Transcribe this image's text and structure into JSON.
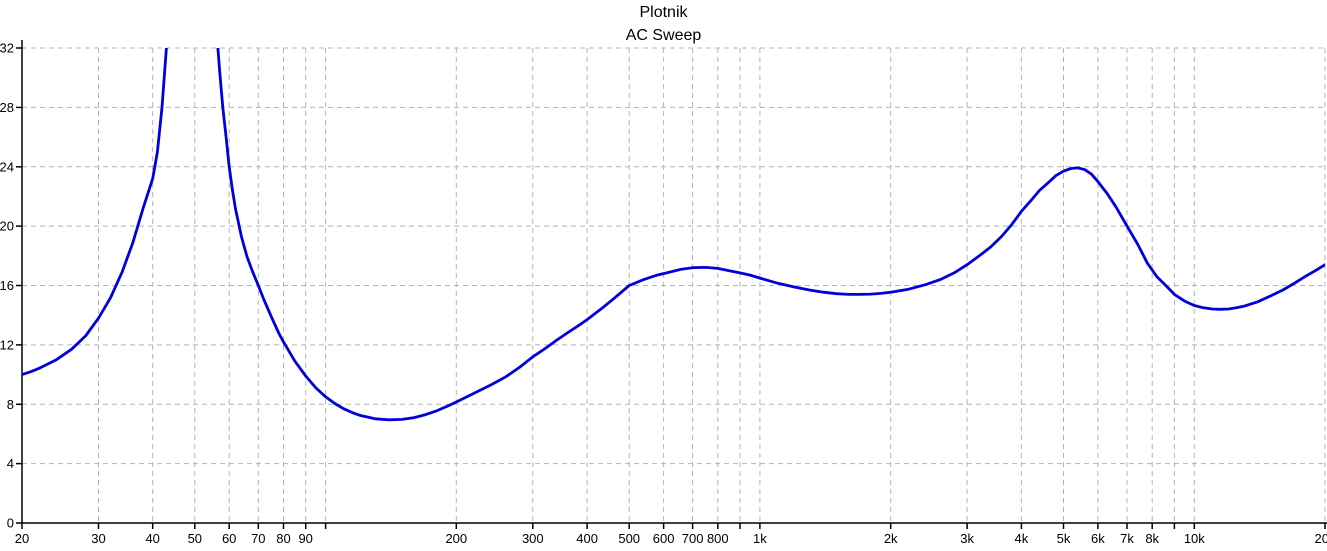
{
  "window_title": "Plotnik",
  "chart_data": {
    "type": "line",
    "title": "Plotnik",
    "subtitle": "AC Sweep",
    "x_scale": "log",
    "x_range": [
      20,
      20000
    ],
    "y_range": [
      0,
      32
    ],
    "grid": true,
    "legend": "none",
    "colors": {
      "trace": "#0000dd",
      "grid": "#b4b4b4",
      "axis": "#000000",
      "background": "#ffffff",
      "text": "#000000"
    },
    "y_ticks": [
      {
        "v": 0,
        "label": "0"
      },
      {
        "v": 4,
        "label": "4"
      },
      {
        "v": 8,
        "label": "8"
      },
      {
        "v": 12,
        "label": "12"
      },
      {
        "v": 16,
        "label": "16"
      },
      {
        "v": 20,
        "label": "20"
      },
      {
        "v": 24,
        "label": "24"
      },
      {
        "v": 28,
        "label": "28"
      },
      {
        "v": 32,
        "label": "32"
      }
    ],
    "x_ticks": [
      {
        "f": 20,
        "label": "20"
      },
      {
        "f": 30,
        "label": "30"
      },
      {
        "f": 40,
        "label": "40"
      },
      {
        "f": 50,
        "label": "50"
      },
      {
        "f": 60,
        "label": "60"
      },
      {
        "f": 70,
        "label": "70"
      },
      {
        "f": 80,
        "label": "80"
      },
      {
        "f": 90,
        "label": "90"
      },
      {
        "f": 100,
        "label": ""
      },
      {
        "f": 200,
        "label": "200"
      },
      {
        "f": 300,
        "label": "300"
      },
      {
        "f": 400,
        "label": "400"
      },
      {
        "f": 500,
        "label": "500"
      },
      {
        "f": 600,
        "label": "600"
      },
      {
        "f": 700,
        "label": "700"
      },
      {
        "f": 800,
        "label": "800"
      },
      {
        "f": 900,
        "label": ""
      },
      {
        "f": 1000,
        "label": "1k"
      },
      {
        "f": 2000,
        "label": "2k"
      },
      {
        "f": 3000,
        "label": "3k"
      },
      {
        "f": 4000,
        "label": "4k"
      },
      {
        "f": 5000,
        "label": "5k"
      },
      {
        "f": 6000,
        "label": "6k"
      },
      {
        "f": 7000,
        "label": "7k"
      },
      {
        "f": 8000,
        "label": "8k"
      },
      {
        "f": 9000,
        "label": ""
      },
      {
        "f": 10000,
        "label": "10k"
      },
      {
        "f": 20000,
        "label": "20k"
      }
    ],
    "series": [
      {
        "name": "ac-sweep-trace",
        "color": "#0000dd",
        "points": [
          [
            20,
            10.0
          ],
          [
            21,
            10.2
          ],
          [
            22,
            10.45
          ],
          [
            24,
            11.0
          ],
          [
            26,
            11.7
          ],
          [
            28,
            12.6
          ],
          [
            30,
            13.8
          ],
          [
            32,
            15.2
          ],
          [
            34,
            16.9
          ],
          [
            36,
            18.9
          ],
          [
            38,
            21.2
          ],
          [
            40,
            23.2
          ],
          [
            41,
            25.0
          ],
          [
            42,
            28.0
          ],
          [
            43,
            32.0
          ],
          [
            44,
            36.0
          ],
          [
            46,
            42.0
          ],
          [
            48,
            46.0
          ],
          [
            50,
            47.5
          ],
          [
            52,
            45.0
          ],
          [
            54,
            40.0
          ],
          [
            55,
            36.5
          ],
          [
            56,
            33.5
          ],
          [
            57,
            30.5
          ],
          [
            58,
            28.0
          ],
          [
            59,
            26.0
          ],
          [
            60,
            24.0
          ],
          [
            61,
            22.5
          ],
          [
            62,
            21.2
          ],
          [
            64,
            19.3
          ],
          [
            66,
            17.9
          ],
          [
            68,
            16.9
          ],
          [
            70,
            16.0
          ],
          [
            72,
            15.1
          ],
          [
            75,
            13.9
          ],
          [
            78,
            12.8
          ],
          [
            80,
            12.2
          ],
          [
            85,
            10.9
          ],
          [
            90,
            9.9
          ],
          [
            95,
            9.1
          ],
          [
            100,
            8.5
          ],
          [
            105,
            8.05
          ],
          [
            110,
            7.7
          ],
          [
            115,
            7.45
          ],
          [
            120,
            7.25
          ],
          [
            130,
            7.02
          ],
          [
            140,
            6.95
          ],
          [
            150,
            6.98
          ],
          [
            160,
            7.1
          ],
          [
            170,
            7.3
          ],
          [
            180,
            7.55
          ],
          [
            190,
            7.85
          ],
          [
            200,
            8.15
          ],
          [
            220,
            8.75
          ],
          [
            240,
            9.3
          ],
          [
            260,
            9.85
          ],
          [
            280,
            10.5
          ],
          [
            300,
            11.2
          ],
          [
            320,
            11.75
          ],
          [
            340,
            12.3
          ],
          [
            360,
            12.8
          ],
          [
            380,
            13.25
          ],
          [
            400,
            13.7
          ],
          [
            430,
            14.4
          ],
          [
            460,
            15.1
          ],
          [
            500,
            16.0
          ],
          [
            540,
            16.4
          ],
          [
            580,
            16.7
          ],
          [
            620,
            16.9
          ],
          [
            660,
            17.1
          ],
          [
            700,
            17.2
          ],
          [
            750,
            17.22
          ],
          [
            800,
            17.15
          ],
          [
            850,
            17.0
          ],
          [
            900,
            16.85
          ],
          [
            950,
            16.7
          ],
          [
            1000,
            16.5
          ],
          [
            1100,
            16.15
          ],
          [
            1200,
            15.9
          ],
          [
            1300,
            15.7
          ],
          [
            1400,
            15.55
          ],
          [
            1500,
            15.45
          ],
          [
            1600,
            15.4
          ],
          [
            1700,
            15.4
          ],
          [
            1800,
            15.42
          ],
          [
            1900,
            15.47
          ],
          [
            2000,
            15.55
          ],
          [
            2200,
            15.75
          ],
          [
            2400,
            16.05
          ],
          [
            2600,
            16.4
          ],
          [
            2800,
            16.85
          ],
          [
            3000,
            17.4
          ],
          [
            3200,
            18.0
          ],
          [
            3400,
            18.6
          ],
          [
            3600,
            19.3
          ],
          [
            3800,
            20.1
          ],
          [
            4000,
            21.0
          ],
          [
            4200,
            21.7
          ],
          [
            4400,
            22.4
          ],
          [
            4600,
            22.9
          ],
          [
            4800,
            23.4
          ],
          [
            5000,
            23.7
          ],
          [
            5200,
            23.88
          ],
          [
            5400,
            23.92
          ],
          [
            5600,
            23.8
          ],
          [
            5800,
            23.5
          ],
          [
            6000,
            23.0
          ],
          [
            6300,
            22.2
          ],
          [
            6600,
            21.3
          ],
          [
            7000,
            20.0
          ],
          [
            7400,
            18.8
          ],
          [
            7800,
            17.5
          ],
          [
            8200,
            16.6
          ],
          [
            8600,
            16.0
          ],
          [
            9000,
            15.4
          ],
          [
            9500,
            14.95
          ],
          [
            10000,
            14.65
          ],
          [
            10500,
            14.5
          ],
          [
            11000,
            14.42
          ],
          [
            11500,
            14.4
          ],
          [
            12000,
            14.42
          ],
          [
            12500,
            14.5
          ],
          [
            13000,
            14.6
          ],
          [
            14000,
            14.9
          ],
          [
            15000,
            15.3
          ],
          [
            16000,
            15.7
          ],
          [
            17000,
            16.15
          ],
          [
            18000,
            16.6
          ],
          [
            19000,
            17.0
          ],
          [
            20000,
            17.4
          ]
        ]
      }
    ]
  }
}
